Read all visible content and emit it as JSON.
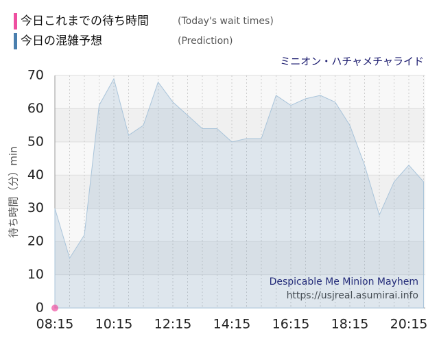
{
  "chart_data": {
    "type": "line",
    "ride": "ミニオン・ハチャメチャライド",
    "y_label": "待ち時間（分）min",
    "annotations": [
      "Despicable Me Minion Mayhem",
      "https://usjreal.asumirai.info"
    ],
    "categories": [
      "08:15",
      null,
      null,
      null,
      "10:15",
      null,
      null,
      null,
      "12:15",
      null,
      null,
      null,
      "14:15",
      null,
      null,
      null,
      "16:15",
      null,
      null,
      null,
      "18:15",
      null,
      null,
      null,
      "20:15",
      null
    ],
    "series": [
      {
        "name": "今日これまでの待ち時間",
        "name_en": "(Today's wait times)",
        "color": "#ee4fa0",
        "values": [
          0,
          null,
          null,
          null,
          null,
          null,
          null,
          null,
          null,
          null,
          null,
          null,
          null,
          null,
          null,
          null,
          null,
          null,
          null,
          null,
          null,
          null,
          null,
          null,
          null,
          null
        ]
      },
      {
        "name": "今日の混雑予想",
        "name_en": "(Prediction)",
        "color": "#4a7fae",
        "values": [
          30,
          15,
          22,
          61,
          69,
          52,
          55,
          68,
          62,
          58,
          54,
          54,
          50,
          51,
          51,
          64,
          61,
          63,
          64,
          62,
          55,
          43,
          28,
          38,
          43,
          38
        ]
      }
    ],
    "ylim": [
      0,
      70
    ],
    "yticks": [
      0,
      10,
      20,
      30,
      40,
      50,
      60,
      70
    ],
    "grid": true
  }
}
